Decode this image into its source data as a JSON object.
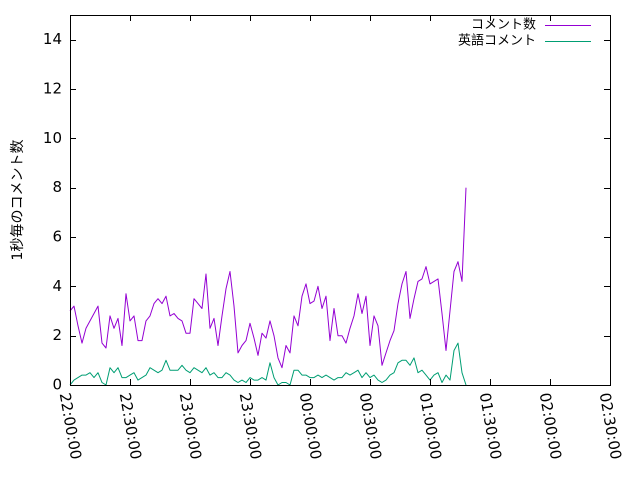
{
  "chart_data": {
    "type": "line",
    "ylabel": "1秒毎のコメント数",
    "ylim": [
      0,
      15
    ],
    "yticks": [
      0,
      2,
      4,
      6,
      8,
      10,
      12,
      14
    ],
    "xlim": [
      "22:00:00",
      "02:30:00"
    ],
    "xticks": [
      "22:00:00",
      "22:30:00",
      "23:00:00",
      "23:30:00",
      "00:00:00",
      "00:30:00",
      "01:00:00",
      "01:30:00",
      "02:00:00",
      "02:30:00"
    ],
    "grid": false,
    "legend_position": "top-right",
    "series": [
      {
        "name": "コメント数",
        "color": "#9400d3",
        "points": [
          [
            "22:00:00",
            3.0
          ],
          [
            "22:02:00",
            3.2
          ],
          [
            "22:04:00",
            2.4
          ],
          [
            "22:06:00",
            1.7
          ],
          [
            "22:08:00",
            2.3
          ],
          [
            "22:10:00",
            2.6
          ],
          [
            "22:12:00",
            2.9
          ],
          [
            "22:14:00",
            3.2
          ],
          [
            "22:16:00",
            1.7
          ],
          [
            "22:18:00",
            1.5
          ],
          [
            "22:20:00",
            2.8
          ],
          [
            "22:22:00",
            2.3
          ],
          [
            "22:24:00",
            2.7
          ],
          [
            "22:26:00",
            1.6
          ],
          [
            "22:28:00",
            3.7
          ],
          [
            "22:30:00",
            2.6
          ],
          [
            "22:32:00",
            2.8
          ],
          [
            "22:34:00",
            1.8
          ],
          [
            "22:36:00",
            1.8
          ],
          [
            "22:38:00",
            2.6
          ],
          [
            "22:40:00",
            2.8
          ],
          [
            "22:42:00",
            3.3
          ],
          [
            "22:44:00",
            3.5
          ],
          [
            "22:46:00",
            3.3
          ],
          [
            "22:48:00",
            3.6
          ],
          [
            "22:50:00",
            2.8
          ],
          [
            "22:52:00",
            2.9
          ],
          [
            "22:54:00",
            2.7
          ],
          [
            "22:56:00",
            2.6
          ],
          [
            "22:58:00",
            2.1
          ],
          [
            "23:00:00",
            2.1
          ],
          [
            "23:02:00",
            3.5
          ],
          [
            "23:04:00",
            3.3
          ],
          [
            "23:06:00",
            3.1
          ],
          [
            "23:08:00",
            4.5
          ],
          [
            "23:10:00",
            2.3
          ],
          [
            "23:12:00",
            2.7
          ],
          [
            "23:14:00",
            1.6
          ],
          [
            "23:16:00",
            2.8
          ],
          [
            "23:18:00",
            3.9
          ],
          [
            "23:20:00",
            4.6
          ],
          [
            "23:22:00",
            3.2
          ],
          [
            "23:24:00",
            1.3
          ],
          [
            "23:26:00",
            1.6
          ],
          [
            "23:28:00",
            1.8
          ],
          [
            "23:30:00",
            2.5
          ],
          [
            "23:32:00",
            1.9
          ],
          [
            "23:34:00",
            1.2
          ],
          [
            "23:36:00",
            2.1
          ],
          [
            "23:38:00",
            1.9
          ],
          [
            "23:40:00",
            2.6
          ],
          [
            "23:42:00",
            2.0
          ],
          [
            "23:44:00",
            1.1
          ],
          [
            "23:46:00",
            0.7
          ],
          [
            "23:48:00",
            1.6
          ],
          [
            "23:50:00",
            1.3
          ],
          [
            "23:52:00",
            2.8
          ],
          [
            "23:54:00",
            2.4
          ],
          [
            "23:56:00",
            3.6
          ],
          [
            "23:58:00",
            4.1
          ],
          [
            "00:00:00",
            3.3
          ],
          [
            "00:02:00",
            3.4
          ],
          [
            "00:04:00",
            4.0
          ],
          [
            "00:06:00",
            3.1
          ],
          [
            "00:08:00",
            3.6
          ],
          [
            "00:10:00",
            1.8
          ],
          [
            "00:12:00",
            3.1
          ],
          [
            "00:14:00",
            2.0
          ],
          [
            "00:16:00",
            2.0
          ],
          [
            "00:18:00",
            1.7
          ],
          [
            "00:20:00",
            2.3
          ],
          [
            "00:22:00",
            2.8
          ],
          [
            "00:24:00",
            3.7
          ],
          [
            "00:26:00",
            2.9
          ],
          [
            "00:28:00",
            3.6
          ],
          [
            "00:30:00",
            1.6
          ],
          [
            "00:32:00",
            2.8
          ],
          [
            "00:34:00",
            2.4
          ],
          [
            "00:36:00",
            0.8
          ],
          [
            "00:38:00",
            1.3
          ],
          [
            "00:40:00",
            1.8
          ],
          [
            "00:42:00",
            2.2
          ],
          [
            "00:44:00",
            3.3
          ],
          [
            "00:46:00",
            4.1
          ],
          [
            "00:48:00",
            4.6
          ],
          [
            "00:50:00",
            2.7
          ],
          [
            "00:52:00",
            3.5
          ],
          [
            "00:54:00",
            4.2
          ],
          [
            "00:56:00",
            4.3
          ],
          [
            "00:58:00",
            4.8
          ],
          [
            "01:00:00",
            4.1
          ],
          [
            "01:02:00",
            4.2
          ],
          [
            "01:04:00",
            4.3
          ],
          [
            "01:06:00",
            2.9
          ],
          [
            "01:08:00",
            1.4
          ],
          [
            "01:10:00",
            3.0
          ],
          [
            "01:12:00",
            4.6
          ],
          [
            "01:14:00",
            5.0
          ],
          [
            "01:16:00",
            4.2
          ],
          [
            "01:18:00",
            8.0
          ]
        ]
      },
      {
        "name": "英語コメント",
        "color": "#009e73",
        "points": [
          [
            "22:00:00",
            0.0
          ],
          [
            "22:02:00",
            0.2
          ],
          [
            "22:04:00",
            0.3
          ],
          [
            "22:06:00",
            0.4
          ],
          [
            "22:08:00",
            0.4
          ],
          [
            "22:10:00",
            0.5
          ],
          [
            "22:12:00",
            0.3
          ],
          [
            "22:14:00",
            0.5
          ],
          [
            "22:16:00",
            0.1
          ],
          [
            "22:18:00",
            0.0
          ],
          [
            "22:20:00",
            0.7
          ],
          [
            "22:22:00",
            0.5
          ],
          [
            "22:24:00",
            0.7
          ],
          [
            "22:26:00",
            0.3
          ],
          [
            "22:28:00",
            0.3
          ],
          [
            "22:30:00",
            0.4
          ],
          [
            "22:32:00",
            0.5
          ],
          [
            "22:34:00",
            0.2
          ],
          [
            "22:36:00",
            0.3
          ],
          [
            "22:38:00",
            0.4
          ],
          [
            "22:40:00",
            0.7
          ],
          [
            "22:42:00",
            0.6
          ],
          [
            "22:44:00",
            0.5
          ],
          [
            "22:46:00",
            0.6
          ],
          [
            "22:48:00",
            1.0
          ],
          [
            "22:50:00",
            0.6
          ],
          [
            "22:52:00",
            0.6
          ],
          [
            "22:54:00",
            0.6
          ],
          [
            "22:56:00",
            0.8
          ],
          [
            "22:58:00",
            0.6
          ],
          [
            "23:00:00",
            0.5
          ],
          [
            "23:02:00",
            0.7
          ],
          [
            "23:04:00",
            0.6
          ],
          [
            "23:06:00",
            0.5
          ],
          [
            "23:08:00",
            0.7
          ],
          [
            "23:10:00",
            0.4
          ],
          [
            "23:12:00",
            0.5
          ],
          [
            "23:14:00",
            0.3
          ],
          [
            "23:16:00",
            0.3
          ],
          [
            "23:18:00",
            0.5
          ],
          [
            "23:20:00",
            0.4
          ],
          [
            "23:22:00",
            0.2
          ],
          [
            "23:24:00",
            0.1
          ],
          [
            "23:26:00",
            0.2
          ],
          [
            "23:28:00",
            0.1
          ],
          [
            "23:30:00",
            0.3
          ],
          [
            "23:32:00",
            0.2
          ],
          [
            "23:34:00",
            0.2
          ],
          [
            "23:36:00",
            0.3
          ],
          [
            "23:38:00",
            0.2
          ],
          [
            "23:40:00",
            0.9
          ],
          [
            "23:42:00",
            0.3
          ],
          [
            "23:44:00",
            0.0
          ],
          [
            "23:46:00",
            0.1
          ],
          [
            "23:48:00",
            0.1
          ],
          [
            "23:50:00",
            0.0
          ],
          [
            "23:52:00",
            0.6
          ],
          [
            "23:54:00",
            0.6
          ],
          [
            "23:56:00",
            0.4
          ],
          [
            "23:58:00",
            0.4
          ],
          [
            "00:00:00",
            0.3
          ],
          [
            "00:02:00",
            0.3
          ],
          [
            "00:04:00",
            0.4
          ],
          [
            "00:06:00",
            0.3
          ],
          [
            "00:08:00",
            0.4
          ],
          [
            "00:10:00",
            0.3
          ],
          [
            "00:12:00",
            0.2
          ],
          [
            "00:14:00",
            0.3
          ],
          [
            "00:16:00",
            0.3
          ],
          [
            "00:18:00",
            0.5
          ],
          [
            "00:20:00",
            0.4
          ],
          [
            "00:22:00",
            0.5
          ],
          [
            "00:24:00",
            0.6
          ],
          [
            "00:26:00",
            0.3
          ],
          [
            "00:28:00",
            0.5
          ],
          [
            "00:30:00",
            0.3
          ],
          [
            "00:32:00",
            0.4
          ],
          [
            "00:34:00",
            0.2
          ],
          [
            "00:36:00",
            0.1
          ],
          [
            "00:38:00",
            0.2
          ],
          [
            "00:40:00",
            0.4
          ],
          [
            "00:42:00",
            0.5
          ],
          [
            "00:44:00",
            0.9
          ],
          [
            "00:46:00",
            1.0
          ],
          [
            "00:48:00",
            1.0
          ],
          [
            "00:50:00",
            0.8
          ],
          [
            "00:52:00",
            1.1
          ],
          [
            "00:54:00",
            0.5
          ],
          [
            "00:56:00",
            0.6
          ],
          [
            "00:58:00",
            0.4
          ],
          [
            "01:00:00",
            0.2
          ],
          [
            "01:02:00",
            0.4
          ],
          [
            "01:04:00",
            0.5
          ],
          [
            "01:06:00",
            0.1
          ],
          [
            "01:08:00",
            0.4
          ],
          [
            "01:10:00",
            0.2
          ],
          [
            "01:12:00",
            1.4
          ],
          [
            "01:14:00",
            1.7
          ],
          [
            "01:16:00",
            0.5
          ],
          [
            "01:18:00",
            0.0
          ]
        ]
      }
    ]
  }
}
